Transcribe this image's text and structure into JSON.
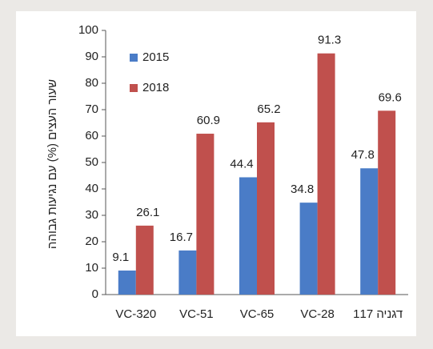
{
  "chart_data": {
    "type": "bar",
    "y_label": "שעור העצים (%) עם נגיעות גבוהה",
    "categories": [
      "VC-320",
      "VC-51",
      "VC-65",
      "VC-28",
      "דגניה 117"
    ],
    "series": [
      {
        "name": "2015",
        "color": "#4a7cc7",
        "values": [
          9.1,
          16.7,
          44.4,
          34.8,
          47.8
        ]
      },
      {
        "name": "2018",
        "color": "#c0504d",
        "values": [
          26.1,
          60.9,
          65.2,
          91.3,
          69.6
        ]
      }
    ],
    "ylim": [
      0,
      100
    ],
    "yticks": [
      0,
      10,
      20,
      30,
      40,
      50,
      60,
      70,
      80,
      90,
      100
    ],
    "legend": "upper left"
  }
}
